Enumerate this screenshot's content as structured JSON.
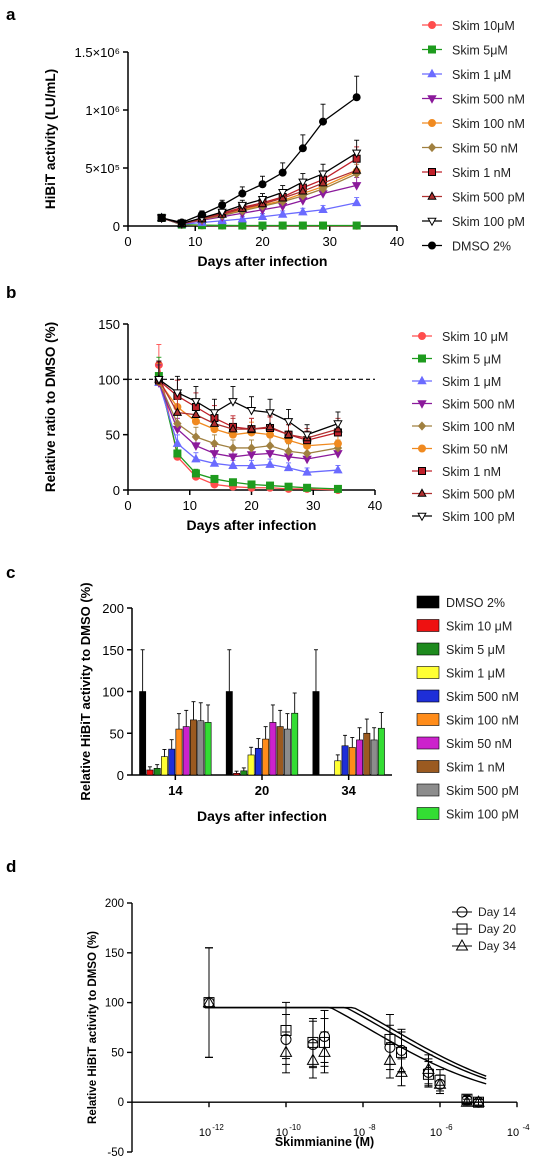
{
  "chart_data": [
    {
      "panel": "a",
      "type": "line",
      "xlabel": "Days after infection",
      "ylabel": "HiBiT activity (LU/mL)",
      "xlim": [
        0,
        40
      ],
      "ylim": [
        0,
        1500000
      ],
      "xticks": [
        "0",
        "10",
        "20",
        "30",
        "40"
      ],
      "yticks": [
        {
          "value": 0,
          "label": "0"
        },
        {
          "value": 500000,
          "label": "5×10⁵"
        },
        {
          "value": 1000000,
          "label": "1×10⁶"
        },
        {
          "value": 1500000,
          "label": "1.5×10⁶"
        }
      ],
      "x": [
        5,
        8,
        11,
        14,
        17,
        20,
        23,
        26,
        29,
        34
      ],
      "series": [
        {
          "name": "Skim 10μM",
          "color": "#ff4d4d",
          "marker": "circle",
          "values": [
            70000,
            10000,
            5000,
            3000,
            2000,
            2000,
            2000,
            2000,
            2000,
            2000
          ]
        },
        {
          "name": "Skim 5μM",
          "color": "#1e9b1e",
          "marker": "square",
          "values": [
            70000,
            12000,
            7000,
            5000,
            4000,
            4000,
            4000,
            4000,
            4000,
            4000
          ]
        },
        {
          "name": "Skim 1 μM",
          "color": "#6b6bff",
          "marker": "triangle",
          "values": [
            70000,
            15000,
            30000,
            45000,
            60000,
            80000,
            100000,
            120000,
            140000,
            200000
          ]
        },
        {
          "name": "Skim 500 nM",
          "color": "#8b1a9b",
          "marker": "triangle-down",
          "values": [
            70000,
            18000,
            50000,
            80000,
            110000,
            140000,
            170000,
            220000,
            280000,
            350000
          ]
        },
        {
          "name": "Skim 100 nM",
          "color": "#f08a20",
          "marker": "circle",
          "values": [
            70000,
            20000,
            60000,
            100000,
            140000,
            180000,
            220000,
            280000,
            340000,
            470000
          ]
        },
        {
          "name": "Skim 50 nM",
          "color": "#a08040",
          "marker": "diamond",
          "values": [
            70000,
            20000,
            55000,
            90000,
            130000,
            170000,
            210000,
            260000,
            320000,
            450000
          ]
        },
        {
          "name": "Skim 1 nM",
          "color": "#c0202a",
          "marker": "square",
          "values": [
            70000,
            22000,
            65000,
            110000,
            160000,
            200000,
            250000,
            330000,
            400000,
            580000
          ]
        },
        {
          "name": "Skim 500 pM",
          "color": "#b03030",
          "marker": "triangle",
          "values": [
            70000,
            20000,
            60000,
            100000,
            150000,
            190000,
            240000,
            300000,
            370000,
            480000
          ]
        },
        {
          "name": "Skim 100 pM",
          "color": "#ffffff",
          "marker": "triangle-down",
          "values": [
            70000,
            22000,
            70000,
            120000,
            180000,
            230000,
            290000,
            380000,
            450000,
            630000
          ]
        },
        {
          "name": "DMSO 2%",
          "color": "#000000",
          "marker": "circle",
          "values": [
            70000,
            30000,
            100000,
            180000,
            280000,
            360000,
            460000,
            670000,
            900000,
            1110000
          ]
        }
      ]
    },
    {
      "panel": "b",
      "type": "line",
      "xlabel": "Days after infection",
      "ylabel": "Relative ratio to DMSO (%)",
      "xlim": [
        0,
        40
      ],
      "ylim": [
        0,
        150
      ],
      "xticks": [
        "0",
        "10",
        "20",
        "30",
        "40"
      ],
      "yticks": [
        "0",
        "50",
        "100",
        "150"
      ],
      "reference_line": 100,
      "x": [
        5,
        8,
        11,
        14,
        17,
        20,
        23,
        26,
        29,
        34
      ],
      "series": [
        {
          "name": "Skim 10 μM",
          "color": "#ff4d4d",
          "marker": "circle",
          "values": [
            113,
            30,
            12,
            5,
            3,
            2,
            2,
            1,
            1,
            0
          ]
        },
        {
          "name": "Skim 5 μM",
          "color": "#1e9b1e",
          "marker": "square",
          "values": [
            103,
            33,
            15,
            10,
            7,
            5,
            4,
            3,
            2,
            1
          ]
        },
        {
          "name": "Skim 1 μM",
          "color": "#6b6bff",
          "marker": "triangle",
          "values": [
            97,
            42,
            28,
            24,
            22,
            22,
            23,
            20,
            16,
            18
          ]
        },
        {
          "name": "Skim 500 nM",
          "color": "#8b1a9b",
          "marker": "triangle-down",
          "values": [
            97,
            55,
            40,
            33,
            30,
            32,
            33,
            30,
            28,
            33
          ]
        },
        {
          "name": "Skim 100 nM",
          "color": "#a08040",
          "marker": "diamond",
          "values": [
            98,
            60,
            48,
            42,
            38,
            38,
            40,
            35,
            33,
            38
          ]
        },
        {
          "name": "Skim 50 nM",
          "color": "#f08a20",
          "marker": "circle",
          "values": [
            98,
            75,
            62,
            55,
            50,
            52,
            50,
            45,
            40,
            42
          ]
        },
        {
          "name": "Skim 1 nM",
          "color": "#c0202a",
          "marker": "square",
          "values": [
            99,
            85,
            75,
            65,
            57,
            55,
            56,
            50,
            45,
            52
          ]
        },
        {
          "name": "Skim 500 pM",
          "color": "#b03030",
          "marker": "triangle",
          "values": [
            100,
            70,
            68,
            60,
            55,
            55,
            57,
            50,
            47,
            55
          ]
        },
        {
          "name": "Skim 100 pM",
          "color": "#ffffff",
          "marker": "triangle-down",
          "values": [
            100,
            88,
            80,
            70,
            80,
            72,
            70,
            62,
            50,
            60
          ]
        }
      ]
    },
    {
      "panel": "c",
      "type": "bar",
      "xlabel": "Days after infection",
      "ylabel": "Relative HiBiT activity to DMSO (%)",
      "ylim": [
        0,
        200
      ],
      "yticks": [
        "0",
        "50",
        "100",
        "150",
        "200"
      ],
      "categories": [
        "14",
        "20",
        "34"
      ],
      "series": [
        {
          "name": "DMSO 2%",
          "color": "#000000",
          "values": [
            100,
            100,
            100
          ]
        },
        {
          "name": "Skim 10 μM",
          "color": "#ee1111",
          "values": [
            6,
            2,
            0
          ]
        },
        {
          "name": "Skim 5 μM",
          "color": "#1e8a1e",
          "values": [
            8,
            5,
            0
          ]
        },
        {
          "name": "Skim 1 μM",
          "color": "#ffff33",
          "values": [
            22,
            24,
            17
          ]
        },
        {
          "name": "Skim 500 nM",
          "color": "#1e2ed8",
          "values": [
            31,
            32,
            35
          ]
        },
        {
          "name": "Skim 100 nM",
          "color": "#ff8c1a",
          "values": [
            55,
            43,
            33
          ]
        },
        {
          "name": "Skim 50 nM",
          "color": "#cc22cc",
          "values": [
            58,
            63,
            42
          ]
        },
        {
          "name": "Skim 1 nM",
          "color": "#9b5a20",
          "values": [
            66,
            58,
            50
          ]
        },
        {
          "name": "Skim 500 pM",
          "color": "#8c8c8c",
          "values": [
            65,
            55,
            42
          ]
        },
        {
          "name": "Skim 100 pM",
          "color": "#33dd33",
          "values": [
            63,
            74,
            56
          ]
        }
      ]
    },
    {
      "panel": "d",
      "type": "scatter",
      "xlabel": "Skimmianine (M)",
      "ylabel": "Relative HiBiT activity to DMSO (%)",
      "xscale": "log",
      "xlim": [
        -14,
        -4
      ],
      "ylim": [
        -50,
        200
      ],
      "xticks": [
        {
          "value": -12,
          "base": "10",
          "exp": "-12"
        },
        {
          "value": -10,
          "base": "10",
          "exp": "-10"
        },
        {
          "value": -8,
          "base": "10",
          "exp": "-8"
        },
        {
          "value": -6,
          "base": "10",
          "exp": "-6"
        },
        {
          "value": -4,
          "base": "10",
          "exp": "-4"
        }
      ],
      "yticks": [
        "-50",
        "0",
        "50",
        "100",
        "150",
        "200"
      ],
      "x": [
        -12,
        -10,
        -9.3,
        -9,
        -7.3,
        -7,
        -6.3,
        -6,
        -5.3,
        -5
      ],
      "series": [
        {
          "name": "Day 14",
          "marker": "circle",
          "values": [
            100,
            63,
            58,
            66,
            55,
            52,
            30,
            18,
            2,
            0
          ]
        },
        {
          "name": "Day 20",
          "marker": "square",
          "values": [
            100,
            72,
            60,
            60,
            63,
            50,
            28,
            22,
            3,
            0
          ]
        },
        {
          "name": "Day 34",
          "marker": "triangle",
          "values": [
            100,
            50,
            42,
            50,
            42,
            30,
            33,
            18,
            0,
            0
          ]
        }
      ]
    }
  ],
  "labels": {
    "panel_a": "a",
    "panel_b": "b",
    "panel_c": "c",
    "panel_d": "d"
  }
}
